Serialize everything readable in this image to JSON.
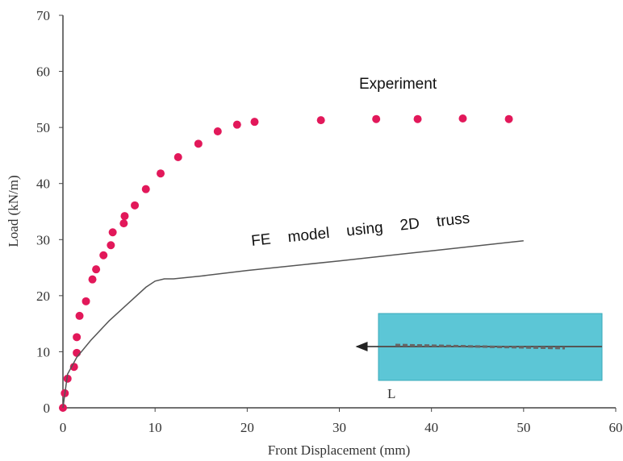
{
  "chart_data": {
    "type": "scatter",
    "x_label": "Front Displacement (mm)",
    "y_label": "Load (kN/m)",
    "xlim": [
      0,
      60
    ],
    "xticks": [
      0,
      10,
      20,
      30,
      40,
      50,
      60
    ],
    "ylim": [
      0,
      70
    ],
    "yticks": [
      0,
      10,
      20,
      30,
      40,
      50,
      60,
      70
    ],
    "inset_label": "L",
    "series": [
      {
        "name": "Experiment",
        "type": "scatter",
        "color": "#e2185a",
        "x": [
          0,
          0.2,
          0.5,
          1.2,
          1.5,
          1.5,
          1.8,
          2.5,
          3.2,
          3.6,
          4.4,
          5.2,
          5.4,
          6.6,
          6.7,
          7.8,
          9.0,
          10.6,
          12.5,
          14.7,
          16.8,
          18.9,
          20.8,
          28.0,
          34.0,
          38.5,
          43.4,
          48.4
        ],
        "values": [
          0,
          2.6,
          5.2,
          7.3,
          9.8,
          12.6,
          16.4,
          19.0,
          22.9,
          24.7,
          27.2,
          29.0,
          31.3,
          32.9,
          34.2,
          36.1,
          39.0,
          41.8,
          44.7,
          47.1,
          49.3,
          50.5,
          51.0,
          51.3,
          51.5,
          51.5,
          51.6,
          51.5
        ]
      },
      {
        "name": "FE model using 2D truss",
        "type": "line",
        "color": "#555555",
        "x": [
          0,
          0.5,
          1.5,
          3,
          5,
          7,
          9,
          10,
          11,
          12,
          15,
          20,
          30,
          40,
          50
        ],
        "values": [
          0,
          6,
          9,
          12,
          15.5,
          18.5,
          21.5,
          22.6,
          23,
          23,
          23.5,
          24.5,
          26.2,
          28,
          29.8
        ]
      }
    ]
  }
}
